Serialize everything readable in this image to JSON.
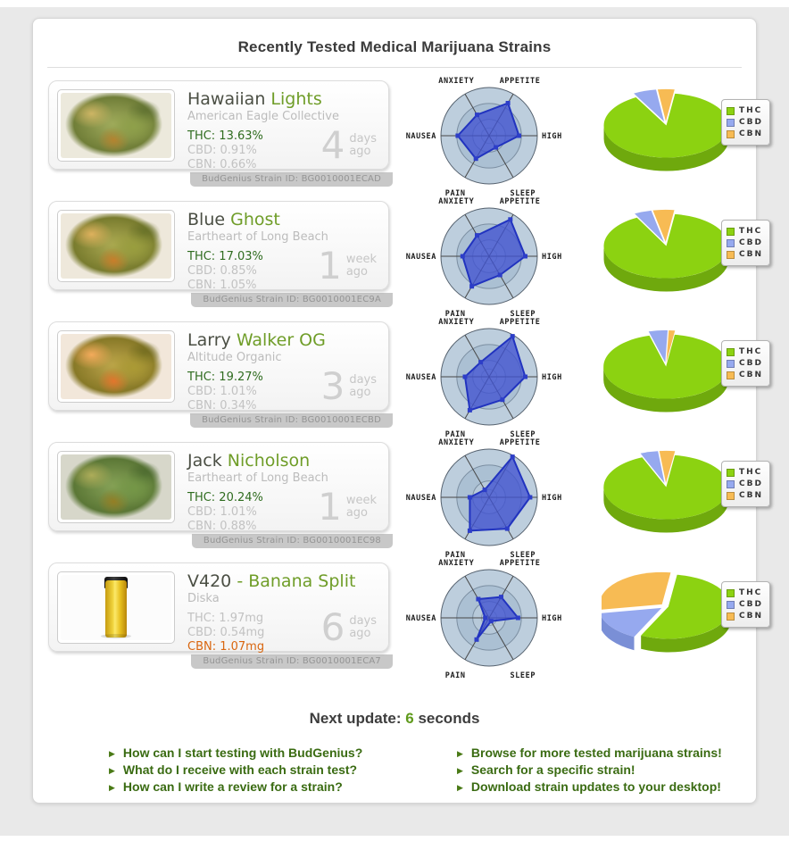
{
  "page": {
    "title": "Recently Tested Medical Marijuana Strains"
  },
  "next_update": {
    "prefix": "Next update: ",
    "value": "6",
    "suffix": " seconds"
  },
  "links_left": [
    "How can I start testing with BudGenius?",
    "What do I receive with each strain test?",
    "How can I write a review for a strain?"
  ],
  "links_right": [
    "Browse for more tested marijuana strains!",
    "Search for a specific strain!",
    "Download strain updates to your desktop!"
  ],
  "radar_axes": [
    {
      "key": "anxiety",
      "label": "ANXIETY"
    },
    {
      "key": "appetite",
      "label": "APPETITE"
    },
    {
      "key": "high",
      "label": "HIGH"
    },
    {
      "key": "sleep",
      "label": "SLEEP"
    },
    {
      "key": "pain",
      "label": "PAIN"
    },
    {
      "key": "nausea",
      "label": "NAUSEA"
    }
  ],
  "legend": [
    {
      "label": "THC",
      "color": "#8CD211",
      "side": "#6FA90D"
    },
    {
      "label": "CBD",
      "color": "#96A9EF",
      "side": "#7A8FD6"
    },
    {
      "label": "CBN",
      "color": "#F7BB54",
      "side": "#DA9D36"
    }
  ],
  "colors": {
    "name_primary": "#4b4f44",
    "name_secondary": "#6f9d28",
    "thc_highlight": "#2f6c1f",
    "cbn_highlight": "#d9660f",
    "link_green": "#3a6b12",
    "radar_fill": "#4153D1",
    "radar_stroke": "#2133BF"
  },
  "strains": [
    {
      "name_primary": "Hawaiian",
      "name_secondary": "Lights",
      "collective": "American Eagle Collective",
      "thc": "THC: 13.63%",
      "cbd": "CBD: 0.91%",
      "cbn": "CBN: 0.66%",
      "highlight": "thc",
      "photo": "bud",
      "photo_variant": "",
      "age_value": "4",
      "age_unit": "days",
      "age_suffix": "ago",
      "strain_id": "BudGenius Strain ID: BG0010001ECAD",
      "radar": {
        "anxiety": 0.5,
        "appetite": 0.78,
        "high": 0.62,
        "sleep": 0.28,
        "pain": 0.55,
        "nausea": 0.65
      },
      "pie": {
        "thc": 89.7,
        "cbd": 6.0,
        "cbn": 4.3
      }
    },
    {
      "name_primary": "Blue",
      "name_secondary": "Ghost",
      "collective": "Eartheart of Long Beach",
      "thc": "THC: 17.03%",
      "cbd": "CBD: 0.85%",
      "cbn": "CBN: 1.05%",
      "highlight": "thc",
      "photo": "bud",
      "photo_variant": "v2",
      "age_value": "1",
      "age_unit": "week",
      "age_suffix": "ago",
      "strain_id": "BudGenius Strain ID: BG0010001EC9A",
      "radar": {
        "anxiety": 0.5,
        "appetite": 0.88,
        "high": 0.75,
        "sleep": 0.45,
        "pain": 0.72,
        "nausea": 0.55
      },
      "pie": {
        "thc": 90.0,
        "cbd": 4.5,
        "cbn": 5.5
      }
    },
    {
      "name_primary": "Larry",
      "name_secondary": "Walker OG",
      "collective": "Altitude Organic",
      "thc": "THC: 19.27%",
      "cbd": "CBD: 1.01%",
      "cbn": "CBN: 0.34%",
      "highlight": "thc",
      "photo": "bud",
      "photo_variant": "v3",
      "age_value": "3",
      "age_unit": "days",
      "age_suffix": "ago",
      "strain_id": "BudGenius Strain ID: BG0010001ECBD",
      "radar": {
        "anxiety": 0.35,
        "appetite": 0.97,
        "high": 0.75,
        "sleep": 0.55,
        "pain": 0.8,
        "nausea": 0.5
      },
      "pie": {
        "thc": 93.5,
        "cbd": 4.9,
        "cbn": 1.6
      }
    },
    {
      "name_primary": "Jack",
      "name_secondary": "Nicholson",
      "collective": "Eartheart of Long Beach",
      "thc": "THC: 20.24%",
      "cbd": "CBD: 1.01%",
      "cbn": "CBN: 0.88%",
      "highlight": "thc",
      "photo": "bud",
      "photo_variant": "v4",
      "age_value": "1",
      "age_unit": "week",
      "age_suffix": "ago",
      "strain_id": "BudGenius Strain ID: BG0010001EC98",
      "radar": {
        "anxiety": 0.18,
        "appetite": 0.97,
        "high": 0.85,
        "sleep": 0.75,
        "pain": 0.8,
        "nausea": 0.4
      },
      "pie": {
        "thc": 91.5,
        "cbd": 4.6,
        "cbn": 4.0
      }
    },
    {
      "name_primary": "V420",
      "name_secondary": "- Banana Split",
      "collective": "Diska",
      "thc": "THC: 1.97mg",
      "cbd": "CBD: 0.54mg",
      "cbn": "CBN: 1.07mg",
      "highlight": "cbn",
      "photo": "vial",
      "photo_variant": "",
      "age_value": "6",
      "age_unit": "days",
      "age_suffix": "ago",
      "strain_id": "BudGenius Strain ID: BG0010001ECA7",
      "radar": {
        "anxiety": 0.45,
        "appetite": 0.5,
        "high": 0.6,
        "sleep": 0.08,
        "pain": 0.52,
        "nausea": 0.08
      },
      "pie": {
        "thc": 55.0,
        "cbd": 15.1,
        "cbn": 29.9
      }
    }
  ]
}
